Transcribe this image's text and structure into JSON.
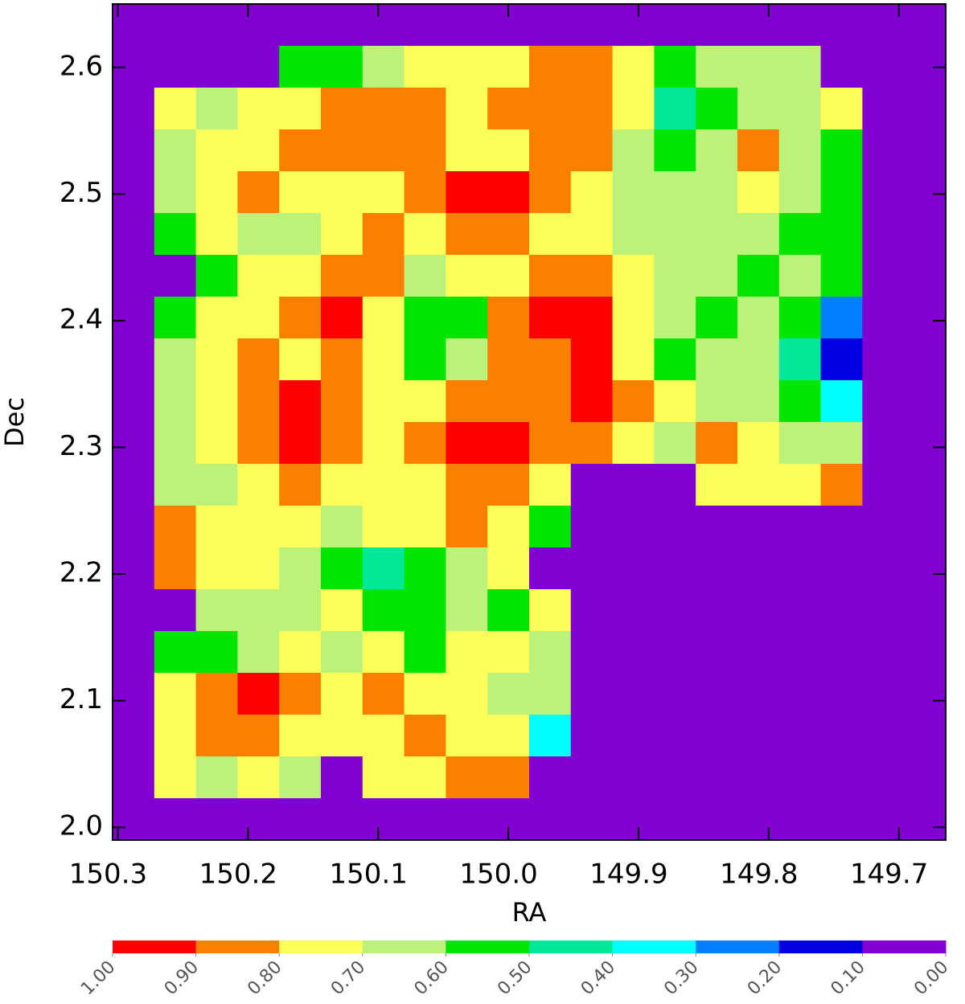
{
  "chart_data": {
    "type": "heatmap",
    "x_label": "RA",
    "y_label": "Dec",
    "xlim": [
      150.304,
      149.664
    ],
    "ylim": [
      1.99,
      2.65
    ],
    "xticks": [
      150.3,
      150.2,
      150.1,
      {
        "value": 150,
        "label": "150.0"
      },
      149.9,
      149.8,
      149.7
    ],
    "yticks": [
      {
        "value": 2,
        "label": "2.0"
      },
      2.1,
      2.2,
      2.3,
      2.4,
      2.5,
      2.6
    ],
    "x": [
      150.288,
      150.256,
      150.224,
      150.192,
      150.16,
      150.128,
      150.096,
      150.064,
      150.032,
      150.0,
      149.968,
      149.936,
      149.904,
      149.872,
      149.84,
      149.808,
      149.776,
      149.744,
      149.712,
      149.68
    ],
    "y": [
      2.6335,
      2.6005,
      2.5675,
      2.5345,
      2.5015,
      2.4685,
      2.4355,
      2.4025,
      2.3695,
      2.3365,
      2.3035,
      2.2705,
      2.2375,
      2.2045,
      2.1715,
      2.1385,
      2.1055,
      2.0725,
      2.0395,
      2.0065
    ],
    "z": [
      [
        0.05,
        0.05,
        0.05,
        0.05,
        0.05,
        0.05,
        0.05,
        0.05,
        0.05,
        0.05,
        0.05,
        0.05,
        0.05,
        0.05,
        0.05,
        0.05,
        0.05,
        0.05,
        0.05,
        0.05
      ],
      [
        0.05,
        0.05,
        0.05,
        0.05,
        0.55,
        0.55,
        0.65,
        0.75,
        0.75,
        0.75,
        0.85,
        0.85,
        0.75,
        0.55,
        0.65,
        0.65,
        0.65,
        0.05,
        0.05,
        0.05
      ],
      [
        0.05,
        0.75,
        0.65,
        0.75,
        0.75,
        0.85,
        0.85,
        0.85,
        0.75,
        0.85,
        0.85,
        0.85,
        0.75,
        0.45,
        0.55,
        0.65,
        0.65,
        0.75,
        0.05,
        0.05
      ],
      [
        0.05,
        0.65,
        0.75,
        0.75,
        0.85,
        0.85,
        0.85,
        0.85,
        0.75,
        0.75,
        0.85,
        0.85,
        0.65,
        0.55,
        0.65,
        0.85,
        0.65,
        0.55,
        0.05,
        0.05
      ],
      [
        0.05,
        0.65,
        0.75,
        0.85,
        0.75,
        0.75,
        0.75,
        0.85,
        0.95,
        0.95,
        0.85,
        0.75,
        0.65,
        0.65,
        0.65,
        0.75,
        0.65,
        0.55,
        0.05,
        0.05
      ],
      [
        0.05,
        0.55,
        0.75,
        0.65,
        0.65,
        0.75,
        0.85,
        0.75,
        0.85,
        0.85,
        0.75,
        0.75,
        0.65,
        0.65,
        0.65,
        0.65,
        0.55,
        0.55,
        0.05,
        0.05
      ],
      [
        0.05,
        0.05,
        0.55,
        0.75,
        0.75,
        0.85,
        0.85,
        0.65,
        0.75,
        0.75,
        0.85,
        0.85,
        0.75,
        0.65,
        0.65,
        0.55,
        0.65,
        0.55,
        0.05,
        0.05
      ],
      [
        0.05,
        0.55,
        0.75,
        0.75,
        0.85,
        0.95,
        0.75,
        0.55,
        0.55,
        0.85,
        0.95,
        0.95,
        0.75,
        0.65,
        0.55,
        0.65,
        0.55,
        0.25,
        0.05,
        0.05
      ],
      [
        0.05,
        0.65,
        0.75,
        0.85,
        0.75,
        0.85,
        0.75,
        0.55,
        0.65,
        0.85,
        0.85,
        0.95,
        0.75,
        0.55,
        0.65,
        0.65,
        0.45,
        0.15,
        0.05,
        0.05
      ],
      [
        0.05,
        0.65,
        0.75,
        0.85,
        0.95,
        0.85,
        0.75,
        0.75,
        0.85,
        0.85,
        0.85,
        0.95,
        0.85,
        0.75,
        0.65,
        0.65,
        0.55,
        0.35,
        0.05,
        0.05
      ],
      [
        0.05,
        0.65,
        0.75,
        0.85,
        0.95,
        0.85,
        0.75,
        0.85,
        0.95,
        0.95,
        0.85,
        0.85,
        0.75,
        0.65,
        0.85,
        0.75,
        0.65,
        0.65,
        0.05,
        0.05
      ],
      [
        0.05,
        0.65,
        0.65,
        0.75,
        0.85,
        0.75,
        0.75,
        0.75,
        0.85,
        0.85,
        0.75,
        0.05,
        0.05,
        0.05,
        0.75,
        0.75,
        0.75,
        0.85,
        0.05,
        0.05
      ],
      [
        0.05,
        0.85,
        0.75,
        0.75,
        0.75,
        0.65,
        0.75,
        0.75,
        0.85,
        0.75,
        0.55,
        0.05,
        0.05,
        0.05,
        0.05,
        0.05,
        0.05,
        0.05,
        0.05,
        0.05
      ],
      [
        0.05,
        0.85,
        0.75,
        0.75,
        0.65,
        0.55,
        0.45,
        0.55,
        0.65,
        0.75,
        0.05,
        0.05,
        0.05,
        0.05,
        0.05,
        0.05,
        0.05,
        0.05,
        0.05,
        0.05
      ],
      [
        0.05,
        0.05,
        0.65,
        0.65,
        0.65,
        0.75,
        0.55,
        0.55,
        0.65,
        0.55,
        0.75,
        0.05,
        0.05,
        0.05,
        0.05,
        0.05,
        0.05,
        0.05,
        0.05,
        0.05
      ],
      [
        0.05,
        0.55,
        0.55,
        0.65,
        0.75,
        0.65,
        0.75,
        0.55,
        0.75,
        0.75,
        0.65,
        0.05,
        0.05,
        0.05,
        0.05,
        0.05,
        0.05,
        0.05,
        0.05,
        0.05
      ],
      [
        0.05,
        0.75,
        0.85,
        0.95,
        0.85,
        0.75,
        0.85,
        0.75,
        0.75,
        0.65,
        0.65,
        0.05,
        0.05,
        0.05,
        0.05,
        0.05,
        0.05,
        0.05,
        0.05,
        0.05
      ],
      [
        0.05,
        0.75,
        0.85,
        0.85,
        0.75,
        0.75,
        0.75,
        0.85,
        0.75,
        0.75,
        0.35,
        0.05,
        0.05,
        0.05,
        0.05,
        0.05,
        0.05,
        0.05,
        0.05,
        0.05
      ],
      [
        0.05,
        0.75,
        0.65,
        0.75,
        0.65,
        0.05,
        0.75,
        0.75,
        0.85,
        0.85,
        0.05,
        0.05,
        0.05,
        0.05,
        0.05,
        0.05,
        0.05,
        0.05,
        0.05,
        0.05
      ],
      [
        0.05,
        0.05,
        0.05,
        0.05,
        0.05,
        0.05,
        0.05,
        0.05,
        0.05,
        0.05,
        0.05,
        0.05,
        0.05,
        0.05,
        0.05,
        0.05,
        0.05,
        0.05,
        0.05,
        0.05
      ]
    ],
    "colorbar": {
      "colors": [
        "#ff0000",
        "#f98000",
        "#ffff5a",
        "#bcf27a",
        "#00e600",
        "#00e898",
        "#00ffff",
        "#0080ff",
        "#0000e0",
        "#8200d2"
      ],
      "ticks": [
        {
          "value": 1,
          "label": "1.00"
        },
        {
          "value": 0.9,
          "label": "0.90"
        },
        {
          "value": 0.8,
          "label": "0.80"
        },
        {
          "value": 0.7,
          "label": "0.70"
        },
        {
          "value": 0.6,
          "label": "0.60"
        },
        {
          "value": 0.5,
          "label": "0.50"
        },
        {
          "value": 0.4,
          "label": "0.40"
        },
        {
          "value": 0.3,
          "label": "0.30"
        },
        {
          "value": 0.2,
          "label": "0.20"
        },
        {
          "value": 0.1,
          "label": "0.10"
        },
        {
          "value": 0,
          "label": "0.00"
        }
      ]
    }
  }
}
